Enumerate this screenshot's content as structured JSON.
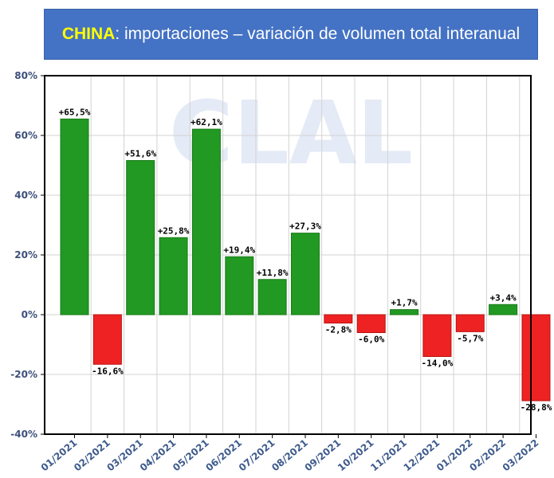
{
  "title": {
    "country": "CHINA",
    "rest": ": importaciones – variación de volumen total interanual"
  },
  "watermark": "CLAL",
  "colors": {
    "positive": "#229922",
    "negative": "#ee2222",
    "title_bg": "#4472c4",
    "highlight": "#ffff00"
  },
  "chart_data": {
    "type": "bar",
    "title": "CHINA: importaciones – variación de volumen total interanual",
    "categories": [
      "01/2021",
      "02/2021",
      "03/2021",
      "04/2021",
      "05/2021",
      "06/2021",
      "07/2021",
      "08/2021",
      "09/2021",
      "10/2021",
      "11/2021",
      "12/2021",
      "01/2022",
      "02/2022",
      "03/2022"
    ],
    "values": [
      65.5,
      -16.6,
      51.6,
      25.8,
      62.1,
      19.4,
      11.8,
      27.3,
      -2.8,
      -6.0,
      1.7,
      -14.0,
      -5.7,
      3.4,
      -28.8
    ],
    "labels": [
      "+65,5%",
      "-16,6%",
      "+51,6%",
      "+25,8%",
      "+62,1%",
      "+19,4%",
      "+11,8%",
      "+27,3%",
      "-2,8%",
      "-6,0%",
      "+1,7%",
      "-14,0%",
      "-5,7%",
      "+3,4%",
      "-28,8%"
    ],
    "yticks": [
      80,
      60,
      40,
      20,
      0,
      -20,
      -40
    ],
    "ytick_labels": [
      "80%",
      "60%",
      "40%",
      "20%",
      "0%",
      "-20%",
      "-40%"
    ],
    "ylim": [
      -40,
      80
    ],
    "grid": true,
    "xlabel": "",
    "ylabel": ""
  }
}
